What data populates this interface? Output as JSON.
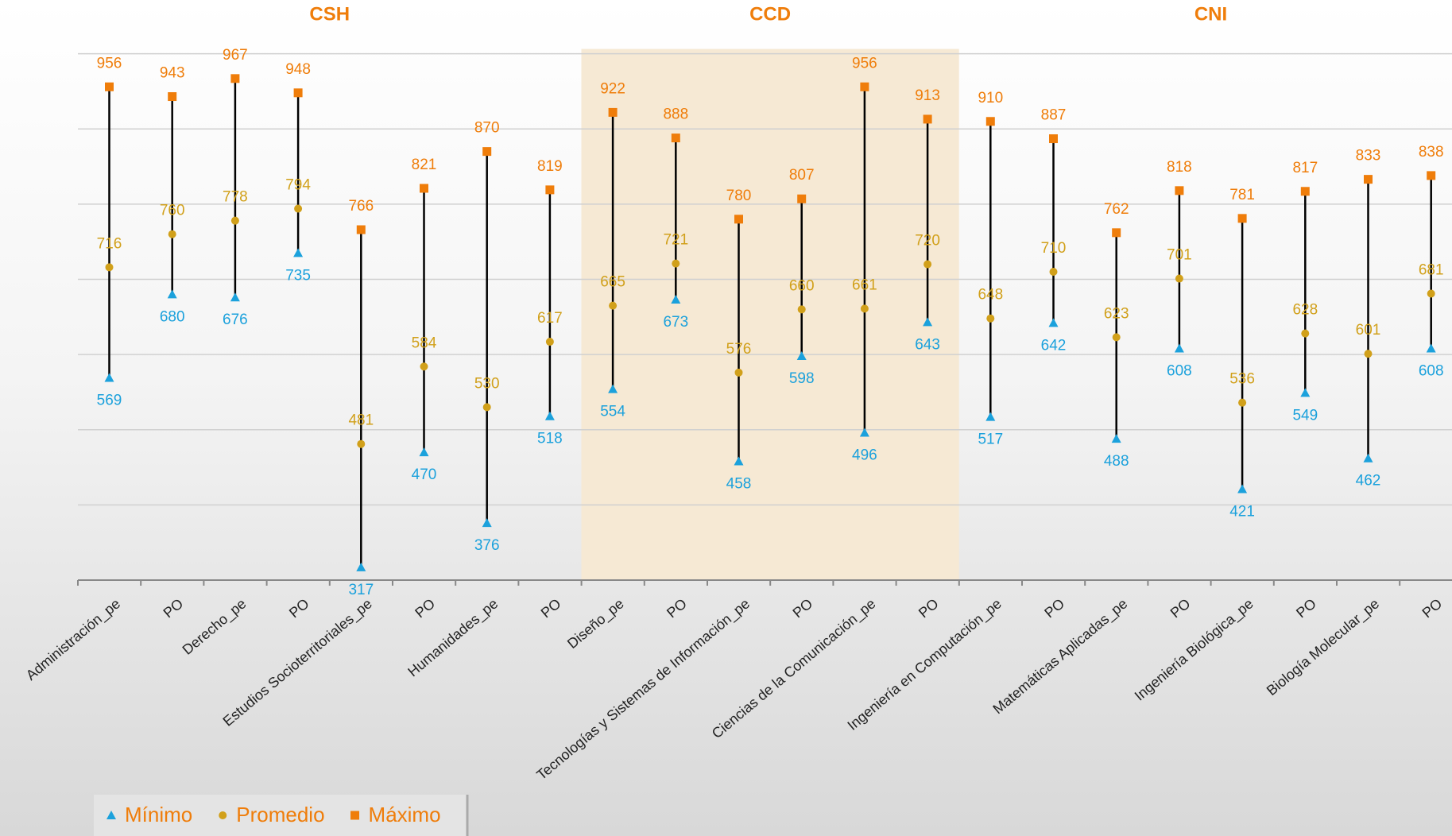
{
  "chart_data": {
    "type": "range",
    "categories": [
      "Administración_pe",
      "PO",
      "Derecho_pe",
      "PO",
      "Estudios Socioterritoriales_pe",
      "PO",
      "Humanidades_pe",
      "PO",
      "Diseño_pe",
      "PO",
      "Tecnologías y Sistemas de Información_pe",
      "PO",
      "Ciencias de la Comunicación_pe",
      "PO",
      "Ingeniería en Computación_pe",
      "PO",
      "Matemáticas Aplicadas_pe",
      "PO",
      "Ingeniería Biológica_pe",
      "PO",
      "Biología Molecular_pe",
      "PO"
    ],
    "groups": [
      {
        "name": "CSH",
        "start": 0,
        "end": 7
      },
      {
        "name": "CCD",
        "start": 8,
        "end": 13,
        "highlight": true
      },
      {
        "name": "CNI",
        "start": 14,
        "end": 21
      }
    ],
    "series": [
      {
        "name": "Mínimo",
        "color": "#1ba1dc",
        "marker": "triangle",
        "values": [
          569,
          680,
          676,
          735,
          317,
          470,
          376,
          518,
          554,
          673,
          458,
          598,
          496,
          643,
          517,
          642,
          488,
          608,
          421,
          549,
          462,
          608
        ]
      },
      {
        "name": "Promedio",
        "color": "#d1a01a",
        "marker": "circle",
        "values": [
          716,
          760,
          778,
          794,
          481,
          584,
          530,
          617,
          665,
          721,
          576,
          660,
          661,
          720,
          648,
          710,
          623,
          701,
          536,
          628,
          601,
          681
        ]
      },
      {
        "name": "Máximo",
        "color": "#ef7d0a",
        "marker": "square",
        "values": [
          956,
          943,
          967,
          948,
          766,
          821,
          870,
          819,
          922,
          888,
          780,
          807,
          956,
          913,
          910,
          887,
          762,
          818,
          781,
          817,
          833,
          838
        ]
      }
    ],
    "ylim": [
      300,
      1000
    ],
    "yticks": [
      400,
      500,
      600,
      700,
      800,
      900,
      1000
    ],
    "ytick_labels": false,
    "grid": true,
    "legend": "bottom-left"
  }
}
